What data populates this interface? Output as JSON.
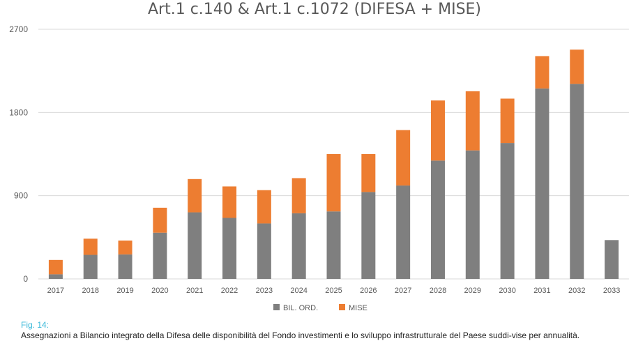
{
  "chart_data": {
    "type": "bar",
    "stacked": true,
    "title": "Art.1 c.140 & Art.1 c.1072 (DIFESA + MISE)",
    "categories": [
      "2017",
      "2018",
      "2019",
      "2020",
      "2021",
      "2022",
      "2023",
      "2024",
      "2025",
      "2026",
      "2027",
      "2028",
      "2029",
      "2030",
      "2031",
      "2032",
      "2033"
    ],
    "series": [
      {
        "name": "BIL. ORD.",
        "color": "#7f7f7f",
        "values": [
          50,
          260,
          265,
          500,
          720,
          660,
          600,
          710,
          730,
          940,
          1010,
          1280,
          1390,
          1470,
          2060,
          2110,
          420
        ]
      },
      {
        "name": "MISE",
        "color": "#ed7d31",
        "values": [
          155,
          175,
          150,
          270,
          360,
          340,
          360,
          380,
          620,
          410,
          600,
          650,
          640,
          480,
          350,
          370,
          0
        ]
      }
    ],
    "yticks": [
      "0",
      "900",
      "1800",
      "2700"
    ],
    "ylim": [
      0,
      2700
    ],
    "grid": true,
    "legend_position": "bottom"
  },
  "caption": {
    "figure_label": "Fig. 14:",
    "text": "Assegnazioni a Bilancio integrato della Difesa delle disponibilità del Fondo investimenti e lo sviluppo infrastrutturale del Paese suddi-vise per annualità."
  }
}
